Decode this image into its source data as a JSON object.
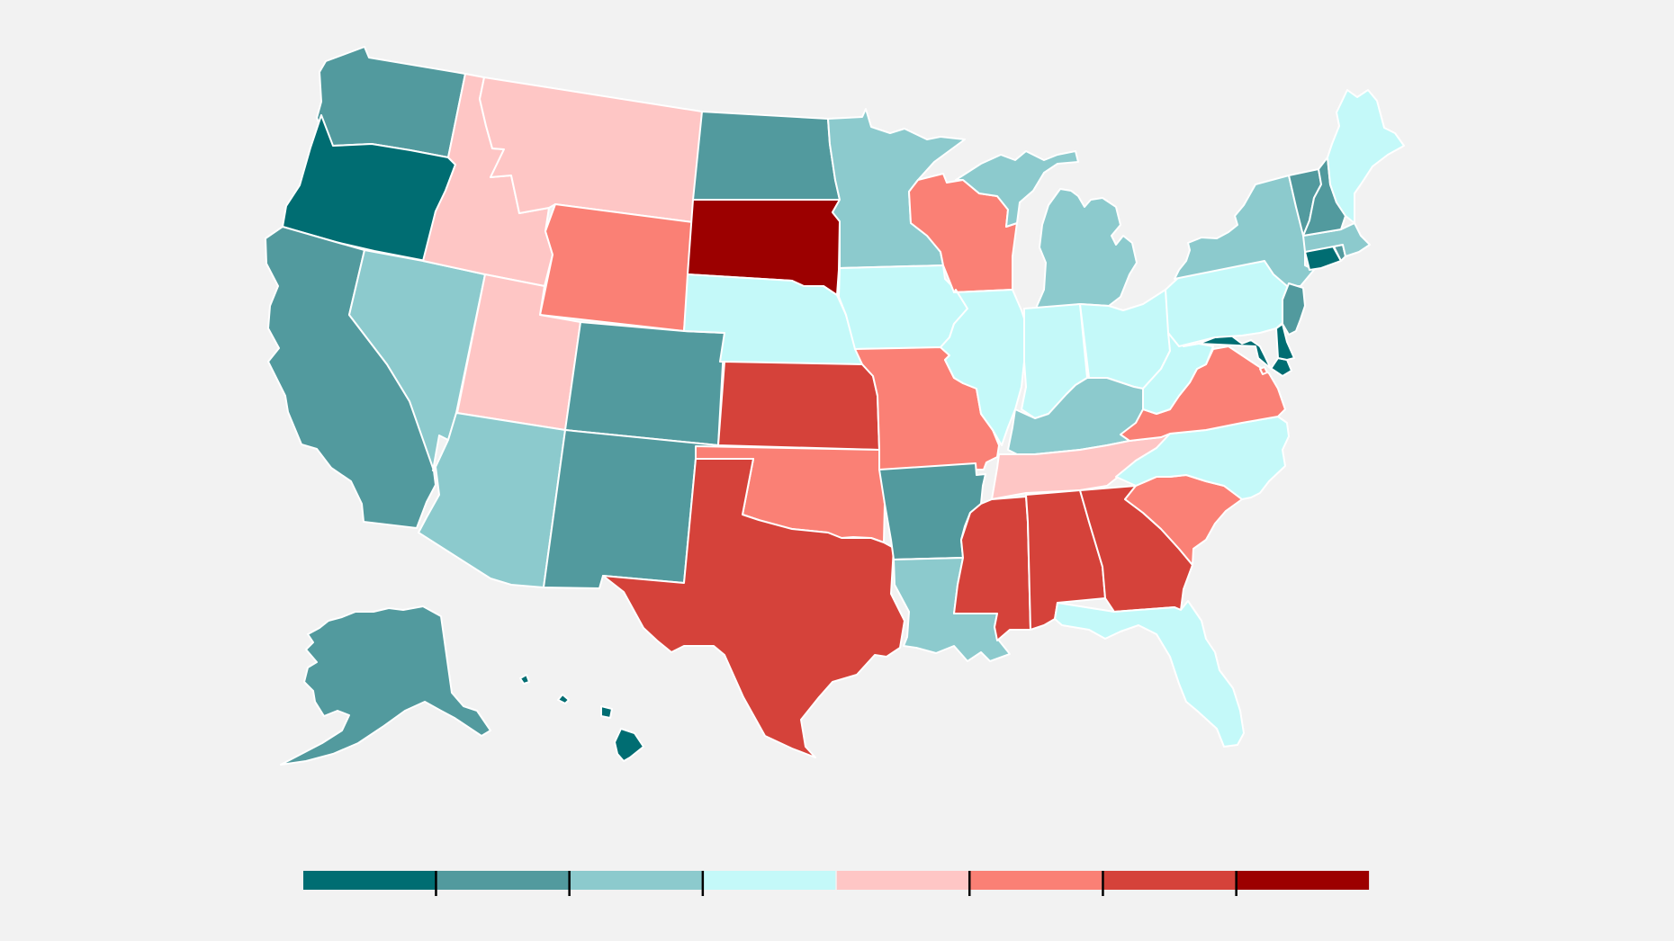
{
  "map": {
    "kind": "us-state-choropleth",
    "scale": {
      "classes": [
        {
          "level": 1,
          "color": "#006d72"
        },
        {
          "level": 2,
          "color": "#529a9e"
        },
        {
          "level": 3,
          "color": "#8ccacd"
        },
        {
          "level": 4,
          "color": "#c4f9f9"
        },
        {
          "level": 5,
          "color": "#fec6c5"
        },
        {
          "level": 6,
          "color": "#fa8075"
        },
        {
          "level": 7,
          "color": "#d5423a"
        },
        {
          "level": 8,
          "color": "#9c0000"
        }
      ],
      "tick_labels": []
    },
    "states": [
      {
        "id": "WA",
        "level": 2
      },
      {
        "id": "OR",
        "level": 1
      },
      {
        "id": "CA",
        "level": 2
      },
      {
        "id": "NV",
        "level": 3
      },
      {
        "id": "ID",
        "level": 5
      },
      {
        "id": "MT",
        "level": 5
      },
      {
        "id": "WY",
        "level": 6
      },
      {
        "id": "UT",
        "level": 5
      },
      {
        "id": "AZ",
        "level": 3
      },
      {
        "id": "CO",
        "level": 2
      },
      {
        "id": "NM",
        "level": 2
      },
      {
        "id": "ND",
        "level": 2
      },
      {
        "id": "SD",
        "level": 8
      },
      {
        "id": "NE",
        "level": 4
      },
      {
        "id": "KS",
        "level": 7
      },
      {
        "id": "OK",
        "level": 6
      },
      {
        "id": "TX",
        "level": 7
      },
      {
        "id": "MN",
        "level": 3
      },
      {
        "id": "IA",
        "level": 4
      },
      {
        "id": "MO",
        "level": 6
      },
      {
        "id": "AR",
        "level": 2
      },
      {
        "id": "LA",
        "level": 3
      },
      {
        "id": "WI",
        "level": 6
      },
      {
        "id": "IL",
        "level": 4
      },
      {
        "id": "MI",
        "level": 3
      },
      {
        "id": "IN",
        "level": 4
      },
      {
        "id": "OH",
        "level": 4
      },
      {
        "id": "KY",
        "level": 3
      },
      {
        "id": "TN",
        "level": 5
      },
      {
        "id": "MS",
        "level": 7
      },
      {
        "id": "AL",
        "level": 7
      },
      {
        "id": "GA",
        "level": 7
      },
      {
        "id": "FL",
        "level": 4
      },
      {
        "id": "SC",
        "level": 6
      },
      {
        "id": "NC",
        "level": 4
      },
      {
        "id": "VA",
        "level": 6
      },
      {
        "id": "WV",
        "level": 4
      },
      {
        "id": "PA",
        "level": 4
      },
      {
        "id": "NY",
        "level": 3
      },
      {
        "id": "NJ",
        "level": 2
      },
      {
        "id": "DE",
        "level": 1
      },
      {
        "id": "MD",
        "level": 1
      },
      {
        "id": "DC",
        "level": 6
      },
      {
        "id": "CT",
        "level": 1
      },
      {
        "id": "RI",
        "level": 2
      },
      {
        "id": "MA",
        "level": 3
      },
      {
        "id": "VT",
        "level": 2
      },
      {
        "id": "NH",
        "level": 2
      },
      {
        "id": "ME",
        "level": 4
      },
      {
        "id": "AK",
        "level": 2
      },
      {
        "id": "HI",
        "level": 1
      }
    ]
  }
}
